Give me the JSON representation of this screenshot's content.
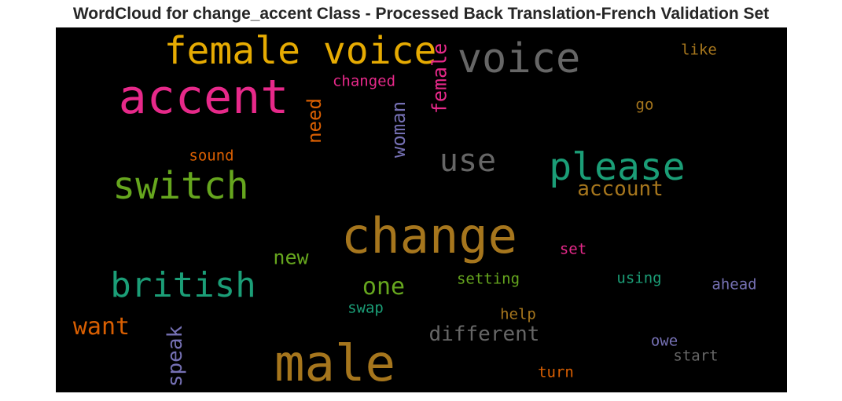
{
  "title": "WordCloud for change_accent Class - Processed Back Translation-French Validation Set",
  "words": [
    {
      "text": "female voice",
      "color": "#e6ab02"
    },
    {
      "text": "voice",
      "color": "#666666"
    },
    {
      "text": "accent",
      "color": "#e7298a"
    },
    {
      "text": "like",
      "color": "#a6761d"
    },
    {
      "text": "changed",
      "color": "#e7298a"
    },
    {
      "text": "female",
      "color": "#e7298a"
    },
    {
      "text": "need",
      "color": "#d95f02"
    },
    {
      "text": "woman",
      "color": "#7570b3"
    },
    {
      "text": "go",
      "color": "#a6761d"
    },
    {
      "text": "sound",
      "color": "#d95f02"
    },
    {
      "text": "use",
      "color": "#666666"
    },
    {
      "text": "please",
      "color": "#1b9e77"
    },
    {
      "text": "switch",
      "color": "#66a61e"
    },
    {
      "text": "account",
      "color": "#a6761d"
    },
    {
      "text": "change",
      "color": "#a6761d"
    },
    {
      "text": "new",
      "color": "#66a61e"
    },
    {
      "text": "set",
      "color": "#e7298a"
    },
    {
      "text": "british",
      "color": "#1b9e77"
    },
    {
      "text": "one",
      "color": "#66a61e"
    },
    {
      "text": "setting",
      "color": "#66a61e"
    },
    {
      "text": "using",
      "color": "#1b9e77"
    },
    {
      "text": "ahead",
      "color": "#7570b3"
    },
    {
      "text": "want",
      "color": "#d95f02"
    },
    {
      "text": "swap",
      "color": "#1b9e77"
    },
    {
      "text": "help",
      "color": "#a6761d"
    },
    {
      "text": "different",
      "color": "#666666"
    },
    {
      "text": "speak",
      "color": "#7570b3"
    },
    {
      "text": "owe",
      "color": "#7570b3"
    },
    {
      "text": "male",
      "color": "#a6761d"
    },
    {
      "text": "start",
      "color": "#666666"
    },
    {
      "text": "turn",
      "color": "#d95f02"
    }
  ]
}
